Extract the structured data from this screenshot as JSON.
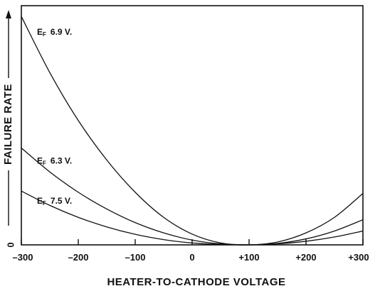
{
  "chart_data": {
    "type": "line",
    "title": "",
    "xlabel": "HEATER-TO-CATHODE VOLTAGE",
    "ylabel": "FAILURE RATE",
    "y_zero_label": "0",
    "xlim": [
      -300,
      300
    ],
    "ylim": [
      0,
      1
    ],
    "x_ticks": [
      -300,
      -200,
      -100,
      0,
      100,
      200,
      300
    ],
    "x_tick_labels": [
      "–300",
      "–200",
      "–100",
      "0",
      "+100",
      "+200",
      "+300"
    ],
    "grid": false,
    "series": [
      {
        "name": "EF 6.9 V.",
        "label_main": "E",
        "label_sub": "F",
        "label_value": "6.9 V.",
        "x": [
          -300,
          -250,
          -200,
          -150,
          -100,
          -50,
          0,
          50,
          100,
          150,
          200,
          250,
          300
        ],
        "y": [
          0.955,
          0.72,
          0.52,
          0.355,
          0.22,
          0.115,
          0.045,
          0.008,
          0.0,
          0.012,
          0.05,
          0.115,
          0.215
        ]
      },
      {
        "name": "EF 6.3 V.",
        "label_main": "E",
        "label_sub": "F",
        "label_value": "6.3 V.",
        "x": [
          -300,
          -250,
          -200,
          -150,
          -100,
          -50,
          0,
          50,
          100,
          150,
          200,
          250,
          300
        ],
        "y": [
          0.405,
          0.305,
          0.22,
          0.15,
          0.093,
          0.05,
          0.02,
          0.004,
          0.0,
          0.006,
          0.025,
          0.058,
          0.105
        ]
      },
      {
        "name": "EF 7.5 V.",
        "label_main": "E",
        "label_sub": "F",
        "label_value": "7.5 V.",
        "x": [
          -300,
          -250,
          -200,
          -150,
          -100,
          -50,
          0,
          50,
          100,
          150,
          200,
          250,
          300
        ],
        "y": [
          0.225,
          0.165,
          0.115,
          0.075,
          0.044,
          0.022,
          0.008,
          0.002,
          0.0,
          0.004,
          0.015,
          0.033,
          0.058
        ]
      }
    ]
  }
}
